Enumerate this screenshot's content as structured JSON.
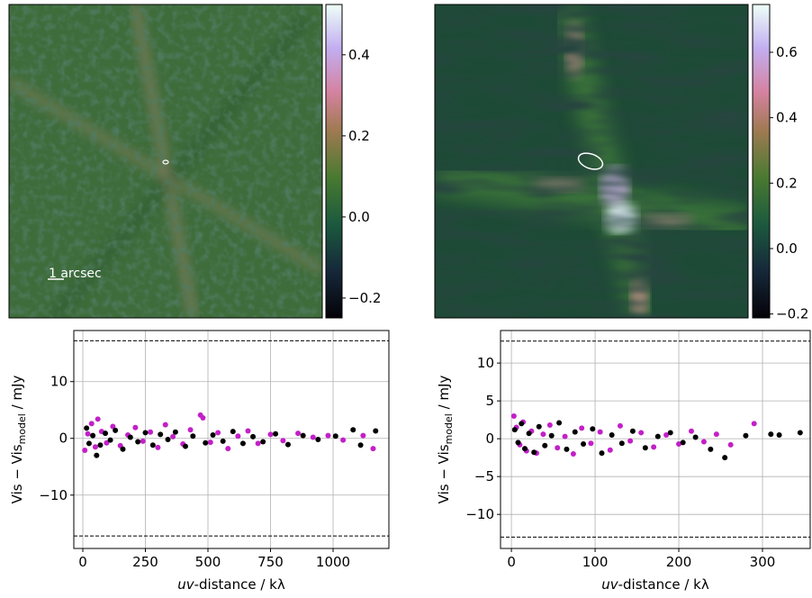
{
  "chart_data": [
    {
      "type": "heatmap",
      "annotation": "1 arcsec",
      "clim": [
        -0.249,
        0.524
      ],
      "cticks": [
        {
          "value": -0.2,
          "label": "−0.2"
        },
        {
          "value": 0,
          "label": "0.0"
        },
        0.2,
        0.4
      ]
    },
    {
      "type": "heatmap",
      "clim": [
        -0.212,
        0.746
      ],
      "cticks": [
        {
          "value": -0.2,
          "label": "−0.2"
        },
        {
          "value": 0,
          "label": "0.0"
        },
        0.2,
        0.4,
        0.6
      ]
    },
    {
      "type": "scatter",
      "xlabel": [
        "uv",
        "-distance / kλ"
      ],
      "ylabel": [
        "Vis − Vis",
        "model",
        " / mJy"
      ],
      "xlim": [
        -36,
        1223
      ],
      "ylim": [
        -19.4,
        19.0
      ],
      "xticks": [
        0,
        250,
        500,
        750,
        1000
      ],
      "yticks": [
        {
          "value": -10,
          "label": "−10"
        },
        0,
        10
      ],
      "grid": true,
      "hlines": [
        17.2,
        -17.2
      ],
      "series": [
        {
          "color": "#c31fc8",
          "x": [
            8,
            20,
            35,
            50,
            60,
            75,
            95,
            120,
            150,
            180,
            210,
            240,
            270,
            300,
            330,
            360,
            400,
            430,
            470,
            480,
            510,
            540,
            580,
            620,
            660,
            700,
            750,
            800,
            860,
            920,
            980,
            1040,
            1120,
            1160
          ],
          "values": [
            -2.1,
            0.8,
            2.6,
            -1.5,
            3.4,
            1.2,
            -0.8,
            2.1,
            -1.3,
            0.6,
            1.9,
            -0.5,
            1.1,
            -1.6,
            2.4,
            0.3,
            -1.0,
            1.5,
            4.1,
            3.6,
            -0.7,
            1.0,
            -1.8,
            0.4,
            1.3,
            -0.9,
            0.7,
            -0.4,
            0.9,
            0.2,
            0.5,
            -0.3,
            0.5,
            -1.8
          ]
        },
        {
          "color": "#000000",
          "x": [
            15,
            25,
            40,
            55,
            70,
            90,
            110,
            130,
            160,
            190,
            220,
            250,
            280,
            310,
            340,
            370,
            410,
            440,
            490,
            520,
            560,
            600,
            640,
            680,
            720,
            770,
            820,
            880,
            940,
            1010,
            1080,
            1110,
            1170
          ],
          "values": [
            1.8,
            -0.9,
            0.5,
            -3.0,
            -1.2,
            0.9,
            -0.3,
            1.4,
            -1.9,
            0.2,
            -0.6,
            1.0,
            -1.2,
            0.7,
            -0.2,
            1.1,
            -1.4,
            0.4,
            -0.8,
            0.6,
            -0.5,
            1.2,
            -0.9,
            0.3,
            -0.6,
            0.8,
            -1.1,
            0.5,
            -0.2,
            0.4,
            1.5,
            -1.2,
            1.3
          ]
        }
      ]
    },
    {
      "type": "scatter",
      "xlabel": [
        "uv",
        "-distance / kλ"
      ],
      "ylabel": [
        "Vis − Vis",
        "model",
        " / mJy"
      ],
      "xlim": [
        -13,
        357
      ],
      "ylim": [
        -14.5,
        14.3
      ],
      "xticks": [
        0,
        100,
        200,
        300
      ],
      "yticks": [
        {
          "value": -10,
          "label": "−10"
        },
        {
          "value": -5,
          "label": "−5"
        },
        0,
        5,
        10
      ],
      "grid": true,
      "hlines": [
        12.9,
        -13.0
      ],
      "series": [
        {
          "color": "#c31fc8",
          "x": [
            3,
            6,
            10,
            14,
            18,
            24,
            30,
            38,
            46,
            55,
            64,
            74,
            84,
            95,
            106,
            118,
            130,
            142,
            155,
            170,
            185,
            200,
            215,
            230,
            245,
            262,
            290
          ],
          "values": [
            3.0,
            1.5,
            -0.8,
            2.2,
            -1.6,
            1.0,
            -1.9,
            0.6,
            1.8,
            -1.2,
            0.3,
            -2.0,
            1.4,
            -0.6,
            0.9,
            -1.5,
            1.7,
            -0.3,
            0.8,
            -1.1,
            0.5,
            -0.7,
            1.0,
            -0.4,
            0.6,
            -0.8,
            2.0
          ]
        },
        {
          "color": "#000000",
          "x": [
            4,
            8,
            12,
            16,
            21,
            27,
            33,
            40,
            48,
            57,
            66,
            76,
            86,
            97,
            108,
            120,
            132,
            145,
            160,
            175,
            190,
            205,
            220,
            238,
            255,
            280,
            310,
            320,
            345
          ],
          "values": [
            1.2,
            -0.5,
            2.0,
            -1.3,
            0.7,
            -1.8,
            1.6,
            -0.9,
            0.4,
            2.1,
            -1.4,
            0.9,
            -0.7,
            1.3,
            -1.9,
            0.5,
            -0.6,
            1.0,
            -1.2,
            0.3,
            0.8,
            -0.5,
            0.2,
            -1.4,
            -2.5,
            0.4,
            0.6,
            0.5,
            0.8
          ]
        }
      ]
    }
  ]
}
